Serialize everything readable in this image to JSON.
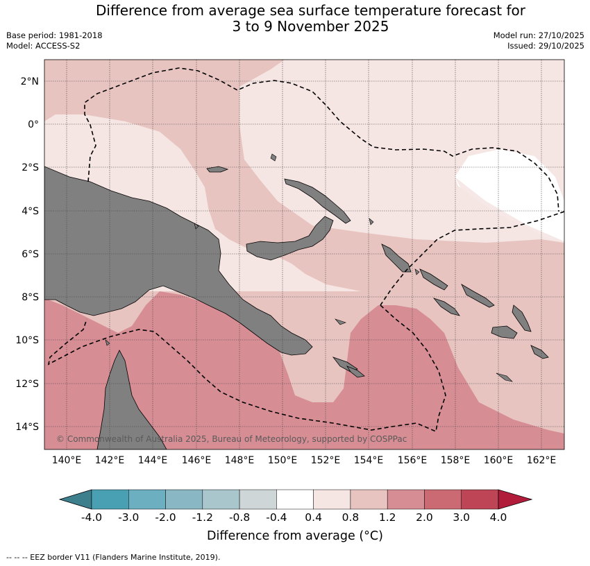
{
  "header": {
    "title_line1": "Difference from average sea surface temperature forecast for",
    "title_line2": "3 to 9 November 2025",
    "base_period": "Base period: 1981-2018",
    "model": "Model: ACCESS-S2",
    "model_run": "Model run: 27/10/2025",
    "issued": "Issued: 29/10/2025"
  },
  "map": {
    "lat_labels": [
      "2°N",
      "0°",
      "2°S",
      "4°S",
      "6°S",
      "8°S",
      "10°S",
      "12°S",
      "14°S"
    ],
    "lon_labels": [
      "140°E",
      "142°E",
      "144°E",
      "146°E",
      "148°E",
      "150°E",
      "152°E",
      "154°E",
      "156°E",
      "158°E",
      "160°E",
      "162°E"
    ],
    "copyright": "© Commonwealth of Australia 2025, Bureau of Meteorology, supported by COSPPac",
    "land_color": "#808080"
  },
  "colorbar": {
    "title": "Difference from average (°C)",
    "tick_labels": [
      "-4.0",
      "-3.0",
      "-2.0",
      "-1.2",
      "-0.8",
      "-0.4",
      "0.4",
      "0.8",
      "1.2",
      "2.0",
      "3.0",
      "4.0"
    ],
    "colors": [
      "#3d7f8c",
      "#49a0b3",
      "#6cafc0",
      "#8ab7c4",
      "#a8c6cb",
      "#cfd6d8",
      "#ffffff",
      "#f5e5e3",
      "#e8c4c0",
      "#d68d94",
      "#cb6a73",
      "#bd4555",
      "#b01c3a"
    ]
  },
  "footnote": "-- -- -- EEZ border V11 (Flanders Marine Institute, 2019)."
}
